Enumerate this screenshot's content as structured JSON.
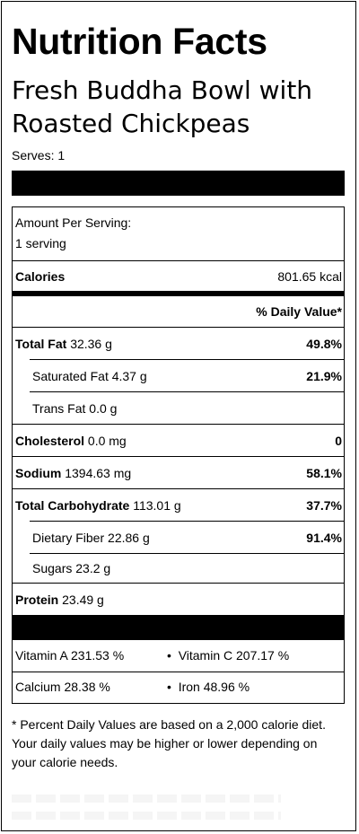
{
  "label": {
    "title": "Nutrition Facts",
    "recipe_name": "Fresh Buddha Bowl with Roasted Chickpeas",
    "serves": "Serves: 1",
    "amount_per_serving": "Amount Per Serving:",
    "serving_size": "1 serving",
    "calories_label": "Calories",
    "calories_value": "801.65 kcal",
    "daily_value_header": "% Daily Value*",
    "nutrients": [
      {
        "label": "Total Fat",
        "amount": "32.36 g",
        "pct": "49.8%"
      },
      {
        "label": "Saturated Fat",
        "amount": "4.37 g",
        "pct": "21.9%"
      },
      {
        "label": "Trans Fat",
        "amount": "0.0 g",
        "pct": ""
      },
      {
        "label": "Cholesterol",
        "amount": "0.0 mg",
        "pct": "0"
      },
      {
        "label": "Sodium",
        "amount": "1394.63 mg",
        "pct": "58.1%"
      },
      {
        "label": "Total Carbohydrate",
        "amount": "113.01 g",
        "pct": "37.7%"
      },
      {
        "label": "Dietary Fiber",
        "amount": "22.86 g",
        "pct": "91.4%"
      },
      {
        "label": "Sugars",
        "amount": "23.2 g",
        "pct": ""
      },
      {
        "label": "Protein",
        "amount": "23.49 g",
        "pct": ""
      }
    ],
    "vitamins": [
      {
        "name": "Vitamin A",
        "value": "231.53 %"
      },
      {
        "name": "Vitamin C",
        "value": "207.17 %"
      },
      {
        "name": "Calcium",
        "value": "28.38 %"
      },
      {
        "name": "Iron",
        "value": "48.96 %"
      }
    ],
    "bullet": "•",
    "footnote": "* Percent Daily Values are based on a 2,000 calorie diet. Your daily values may be higher or lower depending on your calorie needs."
  }
}
